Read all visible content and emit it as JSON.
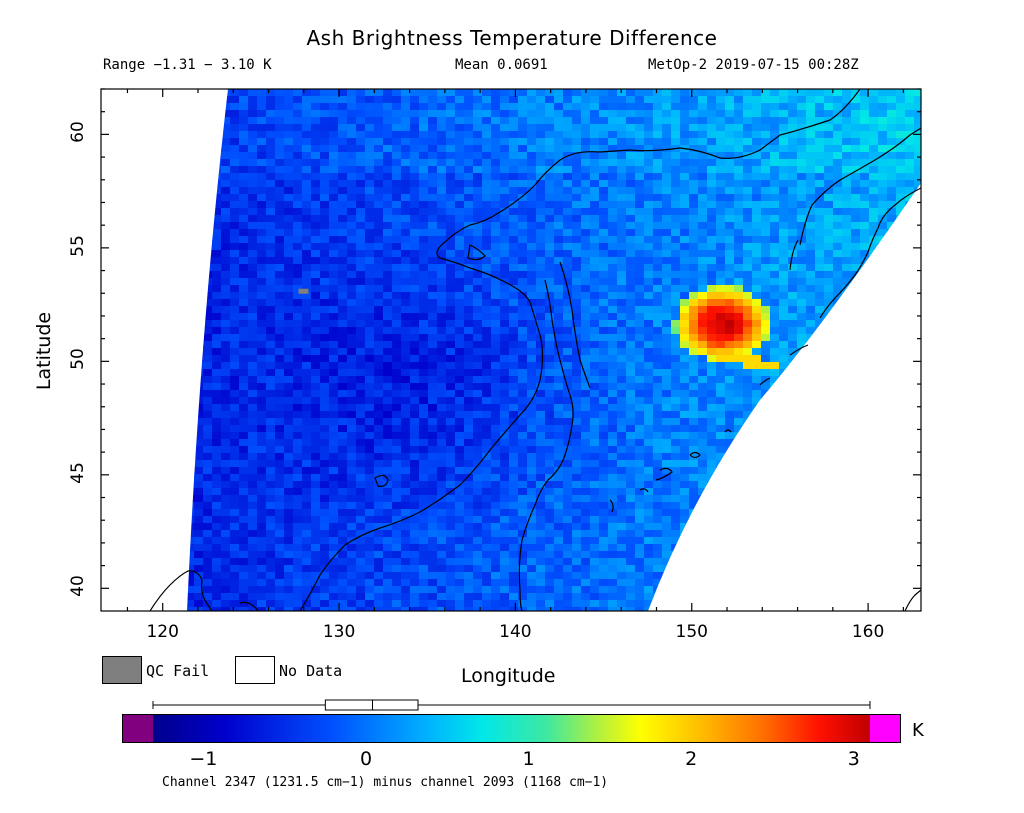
{
  "header": {
    "title": "Ash Brightness Temperature Difference",
    "range": "Range −1.31 − 3.10 K",
    "mean": "Mean 0.0691",
    "satellite_time": "MetOp-2 2019-07-15 00:28Z"
  },
  "map": {
    "xlabel": "Longitude",
    "ylabel": "Latitude",
    "xlim": [
      116.5,
      163
    ],
    "ylim": [
      39,
      62
    ],
    "x_ticks": [
      "120",
      "130",
      "140",
      "150",
      "160"
    ],
    "y_ticks": [
      "40",
      "45",
      "50",
      "55",
      "60"
    ],
    "ash_plume_center": {
      "lon": 151.5,
      "lat": 51.8
    }
  },
  "legend": {
    "qc_fail": "QC Fail",
    "no_data": "No Data"
  },
  "colorbar": {
    "ticks": [
      "−1",
      "0",
      "1",
      "2",
      "3"
    ],
    "unit": "K",
    "range": [
      -1.5,
      3.25
    ],
    "underflow_color": "#800080",
    "overflow_color": "#ff00ff",
    "boxplot": {
      "min": -1.31,
      "q1": -0.25,
      "median": 0.04,
      "q3": 0.32,
      "max": 3.1
    }
  },
  "footer": {
    "channel_note": "Channel 2347 (1231.5 cm−1) minus channel 2093 (1168 cm−1)"
  },
  "colors": {
    "qc_fail": "#7f7f7f",
    "plume_core": "#b00000"
  }
}
